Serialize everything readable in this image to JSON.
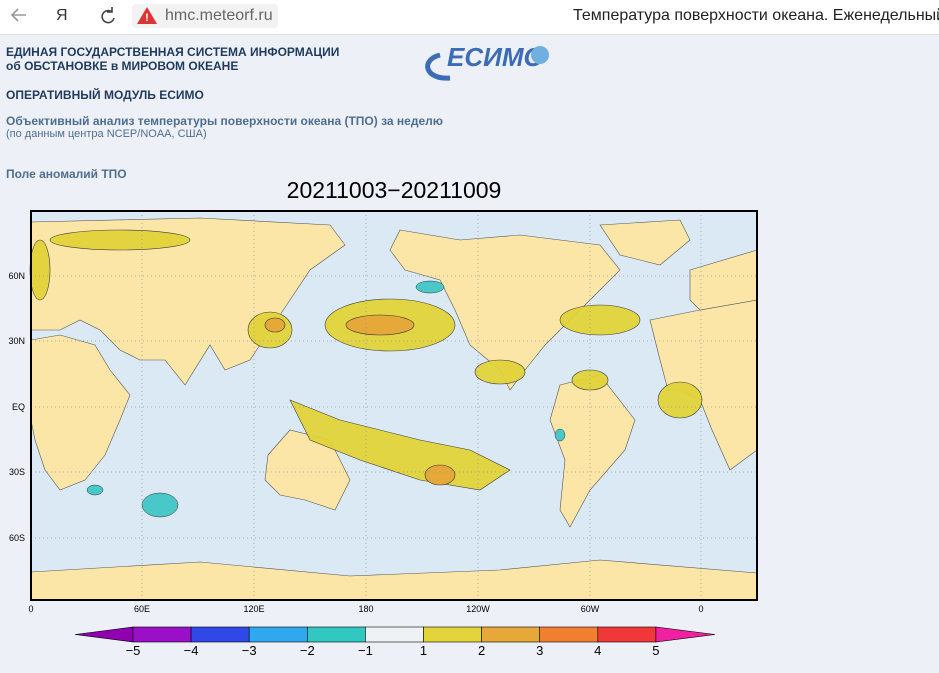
{
  "browser": {
    "brand": "Я",
    "url": "hmc.meteorf.ru",
    "tab_title": "Температура поверхности океана. Еженедельный"
  },
  "header": {
    "line1": "ЕДИНАЯ ГОСУДАРСТВЕННАЯ СИСТЕМА ИНФОРМАЦИИ",
    "line2": "об ОБСТАНОВКЕ в МИРОВОМ ОКЕАНЕ",
    "module": "ОПЕРАТИВНЫЙ МОДУЛЬ ЕСИМО",
    "analysis": "Объективный анализ температуры поверхности океана (ТПО) за неделю",
    "source": "(по данным центра NCEP/NOAA, США)",
    "field": "Поле аномалий ТПО"
  },
  "logo": "ЕСИМО",
  "map": {
    "title": "20211003−20211009",
    "lat_labels": [
      "60N",
      "30N",
      "EQ",
      "30S",
      "60S"
    ],
    "lon_labels": [
      "0",
      "60E",
      "120E",
      "180",
      "120W",
      "60W",
      "0"
    ],
    "colorbar_labels": [
      "−5",
      "−4",
      "−3",
      "−2",
      "−1",
      "1",
      "2",
      "3",
      "4",
      "5"
    ]
  }
}
